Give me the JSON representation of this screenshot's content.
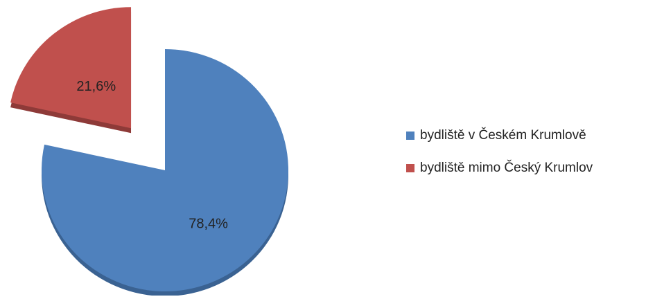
{
  "chart_data": {
    "type": "pie",
    "title": "",
    "explode_slice": 1,
    "start_angle_deg": 0,
    "direction": "clockwise",
    "legend_position": "right",
    "series": [
      {
        "name": "bydliště v Českém Krumlově",
        "value": 78.4,
        "label": "78,4%",
        "color": "#4f81bd",
        "side_color": "#3a6292"
      },
      {
        "name": "bydliště mimo Český Krumlov",
        "value": 21.6,
        "label": "21,6%",
        "color": "#c0504d",
        "side_color": "#8e3a38"
      }
    ],
    "style": "3d-pie-exploded"
  }
}
